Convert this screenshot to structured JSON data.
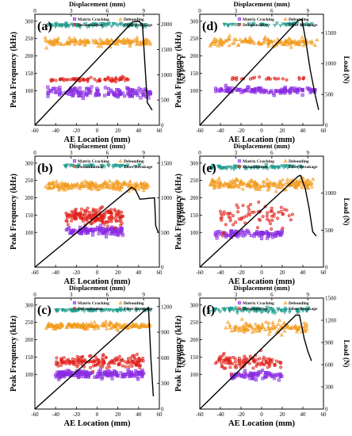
{
  "figure": {
    "legend": [
      "Matrix Cracking",
      "Debonding",
      "Delamination",
      "Fiber Breakage"
    ]
  },
  "chart_data": [
    {
      "type": "scatter",
      "panel_label": "(a)",
      "xlabel": "AE Location (mm)",
      "ylabel": "Peak Frequency (kHz)",
      "top_xlabel": "Displacement (mm)",
      "right_ylabel": "Load (N)",
      "xlim": [
        -60,
        60
      ],
      "xticks": [
        -60,
        -40,
        -20,
        0,
        20,
        40,
        60
      ],
      "ylim": [
        0,
        320
      ],
      "yticks": [
        100,
        150,
        200,
        250,
        300
      ],
      "top_xlim": [
        0,
        10.3
      ],
      "top_xticks": [
        0,
        3,
        6,
        9
      ],
      "right_ylim": [
        0,
        2200
      ],
      "right_yticks": [
        0,
        500,
        1000,
        1500,
        2000
      ],
      "clusters": [
        {
          "name": "Matrix Cracking",
          "x_range": [
            -48,
            52
          ],
          "y_center": 95,
          "y_spread": 12,
          "count": 140
        },
        {
          "name": "Delamination",
          "x_range": [
            -45,
            30
          ],
          "y_center": 132,
          "y_spread": 5,
          "count": 70
        },
        {
          "name": "Debonding",
          "x_range": [
            -50,
            54
          ],
          "y_center": 240,
          "y_spread": 8,
          "count": 150
        },
        {
          "name": "Fiber Breakage",
          "x_range": [
            -48,
            50
          ],
          "y_center": 288,
          "y_spread": 4,
          "count": 90
        }
      ],
      "load_curve": {
        "disp": [
          0,
          8.1,
          8.6,
          8.9,
          9.3,
          9.7
        ],
        "load": [
          0,
          2050,
          2060,
          2000,
          450,
          300
        ]
      }
    },
    {
      "type": "scatter",
      "panel_label": "(d)",
      "xlabel": "AE Location (mm)",
      "ylabel": "Peak Frequency (kHz)",
      "top_xlabel": "Displacement (mm)",
      "right_ylabel": "Load (N)",
      "xlim": [
        -60,
        60
      ],
      "xticks": [
        -60,
        -40,
        -20,
        0,
        20,
        40,
        60
      ],
      "ylim": [
        0,
        320
      ],
      "yticks": [
        100,
        150,
        200,
        250,
        300
      ],
      "top_xlim": [
        0,
        10.3
      ],
      "top_xticks": [
        0,
        3,
        6,
        9
      ],
      "right_ylim": [
        0,
        1800
      ],
      "right_yticks": [
        0,
        500,
        1000,
        1500
      ],
      "clusters": [
        {
          "name": "Matrix Cracking",
          "x_range": [
            -45,
            52
          ],
          "y_center": 100,
          "y_spread": 8,
          "count": 120
        },
        {
          "name": "Delamination",
          "x_range": [
            -30,
            45
          ],
          "y_center": 135,
          "y_spread": 3,
          "count": 25
        },
        {
          "name": "Debonding",
          "x_range": [
            -50,
            54
          ],
          "y_center": 240,
          "y_spread": 10,
          "count": 140
        },
        {
          "name": "Fiber Breakage",
          "x_range": [
            -40,
            50
          ],
          "y_center": 290,
          "y_spread": 3,
          "count": 45
        }
      ],
      "load_curve": {
        "disp": [
          0,
          8.2,
          8.5,
          8.8,
          9.2,
          9.6,
          9.9
        ],
        "load": [
          0,
          1700,
          1720,
          1400,
          900,
          500,
          250
        ]
      }
    },
    {
      "type": "scatter",
      "panel_label": "(b)",
      "xlabel": "AE Location (mm)",
      "ylabel": "Peak Frequency (kHz)",
      "top_xlabel": "Displacement (mm)",
      "right_ylabel": "Load (N)",
      "xlim": [
        -60,
        60
      ],
      "xticks": [
        -60,
        -40,
        -20,
        0,
        20,
        40,
        60
      ],
      "ylim": [
        0,
        320
      ],
      "yticks": [
        100,
        150,
        200,
        250,
        300
      ],
      "top_xlim": [
        0,
        10.3
      ],
      "top_xticks": [
        0,
        3,
        6,
        9
      ],
      "right_ylim": [
        0,
        1600
      ],
      "right_yticks": [
        0,
        500,
        1000,
        1500
      ],
      "clusters": [
        {
          "name": "Matrix Cracking",
          "x_range": [
            -30,
            25
          ],
          "y_center": 105,
          "y_spread": 10,
          "count": 110
        },
        {
          "name": "Delamination",
          "x_range": [
            -30,
            25
          ],
          "y_center": 145,
          "y_spread": 20,
          "count": 170
        },
        {
          "name": "Debonding",
          "x_range": [
            -50,
            50
          ],
          "y_center": 235,
          "y_spread": 10,
          "count": 190
        },
        {
          "name": "Fiber Breakage",
          "x_range": [
            -35,
            45
          ],
          "y_center": 292,
          "y_spread": 3,
          "count": 40
        }
      ],
      "load_curve": {
        "disp": [
          0,
          8.0,
          8.3,
          8.7,
          9.9,
          10.0,
          10.2
        ],
        "load": [
          0,
          1150,
          1120,
          980,
          1000,
          600,
          500
        ]
      }
    },
    {
      "type": "scatter",
      "panel_label": "(e)",
      "xlabel": "AE Location (mm)",
      "ylabel": "Peak Frequency (kHz)",
      "top_xlabel": "Displacement (mm)",
      "right_ylabel": "Load (N)",
      "xlim": [
        -60,
        60
      ],
      "xticks": [
        -60,
        -40,
        -20,
        0,
        20,
        40,
        60
      ],
      "ylim": [
        0,
        320
      ],
      "yticks": [
        100,
        150,
        200,
        250,
        300
      ],
      "top_xlim": [
        0,
        10.3
      ],
      "top_xticks": [
        0,
        3,
        6,
        9
      ],
      "right_ylim": [
        0,
        1500
      ],
      "right_yticks": [
        0,
        500,
        1000
      ],
      "clusters": [
        {
          "name": "Matrix Cracking",
          "x_range": [
            -45,
            20
          ],
          "y_center": 95,
          "y_spread": 8,
          "count": 90
        },
        {
          "name": "Delamination",
          "x_range": [
            -40,
            30
          ],
          "y_center": 150,
          "y_spread": 30,
          "count": 70
        },
        {
          "name": "Debonding",
          "x_range": [
            -50,
            50
          ],
          "y_center": 240,
          "y_spread": 12,
          "count": 190
        },
        {
          "name": "Fiber Breakage",
          "x_range": [
            -50,
            40
          ],
          "y_center": 288,
          "y_spread": 4,
          "count": 70
        }
      ],
      "load_curve": {
        "disp": [
          0,
          8.2,
          8.4,
          8.8,
          9.1,
          9.4,
          9.7
        ],
        "load": [
          0,
          1230,
          1240,
          1050,
          800,
          480,
          420
        ]
      }
    },
    {
      "type": "scatter",
      "panel_label": "(c)",
      "xlabel": "AE Location (mm)",
      "ylabel": "Peak Frequency (kHz)",
      "top_xlabel": "Displacement (mm)",
      "right_ylabel": "Load (N)",
      "xlim": [
        -60,
        60
      ],
      "xticks": [
        -60,
        -40,
        -20,
        0,
        20,
        40,
        60
      ],
      "ylim": [
        0,
        320
      ],
      "yticks": [
        100,
        150,
        200,
        250,
        300
      ],
      "top_xlim": [
        0,
        10.3
      ],
      "top_xticks": [
        0,
        3,
        6,
        9
      ],
      "right_ylim": [
        0,
        1300
      ],
      "right_yticks": [
        0,
        300,
        600,
        900,
        1200
      ],
      "clusters": [
        {
          "name": "Matrix Cracking",
          "x_range": [
            -40,
            45
          ],
          "y_center": 100,
          "y_spread": 10,
          "count": 170
        },
        {
          "name": "Delamination",
          "x_range": [
            -40,
            45
          ],
          "y_center": 135,
          "y_spread": 15,
          "count": 160
        },
        {
          "name": "Debonding",
          "x_range": [
            -50,
            52
          ],
          "y_center": 240,
          "y_spread": 7,
          "count": 170
        },
        {
          "name": "Fiber Breakage",
          "x_range": [
            -40,
            52
          ],
          "y_center": 285,
          "y_spread": 2,
          "count": 80
        }
      ],
      "load_curve": {
        "disp": [
          0,
          9.2,
          9.4,
          9.6,
          9.8
        ],
        "load": [
          0,
          1170,
          1190,
          600,
          150
        ]
      }
    },
    {
      "type": "scatter",
      "panel_label": "(f)",
      "xlabel": "AE Location (mm)",
      "ylabel": "Peak Frequency (kHz)",
      "top_xlabel": "Displacement (mm)",
      "right_ylabel": "Load (N)",
      "xlim": [
        -60,
        60
      ],
      "xticks": [
        -60,
        -40,
        -20,
        0,
        20,
        40,
        60
      ],
      "ylim": [
        0,
        320
      ],
      "yticks": [
        100,
        150,
        200,
        250,
        300
      ],
      "top_xlim": [
        0,
        10.3
      ],
      "top_xticks": [
        0,
        3,
        6,
        9
      ],
      "right_ylim": [
        0,
        1500
      ],
      "right_yticks": [
        0,
        300,
        600,
        900,
        1200,
        1500
      ],
      "clusters": [
        {
          "name": "Matrix Cracking",
          "x_range": [
            -30,
            20
          ],
          "y_center": 98,
          "y_spread": 9,
          "count": 70
        },
        {
          "name": "Delamination",
          "x_range": [
            -45,
            20
          ],
          "y_center": 138,
          "y_spread": 18,
          "count": 110
        },
        {
          "name": "Debonding",
          "x_range": [
            -35,
            45
          ],
          "y_center": 235,
          "y_spread": 15,
          "count": 110
        },
        {
          "name": "Fiber Breakage",
          "x_range": [
            -50,
            45
          ],
          "y_center": 285,
          "y_spread": 5,
          "count": 90
        }
      ],
      "load_curve": {
        "disp": [
          0,
          8.0,
          8.3,
          8.7,
          9.0,
          9.3
        ],
        "load": [
          0,
          1270,
          1270,
          950,
          780,
          650
        ]
      }
    }
  ],
  "style": {
    "colors": {
      "Matrix Cracking": "#8a2be2",
      "Delamination": "#e0201a",
      "Debonding": "#f39a1c",
      "Fiber Breakage": "#1e9a8c",
      "load": "#000000",
      "axis": "#000000"
    },
    "markers": {
      "Matrix Cracking": "square",
      "Delamination": "circle",
      "Debonding": "triangle-up",
      "Fiber Breakage": "triangle-down"
    }
  }
}
